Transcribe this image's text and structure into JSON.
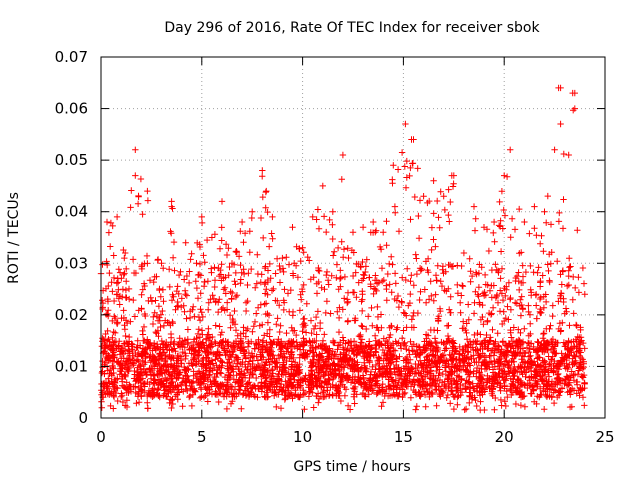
{
  "chart_data": {
    "type": "scatter",
    "title": "Day 296 of 2016, Rate Of TEC Index for receiver sbok",
    "xlabel": "GPS time / hours",
    "ylabel": "ROTI / TECUs",
    "xlim": [
      0,
      25
    ],
    "ylim": [
      0,
      0.07
    ],
    "xticks": [
      0,
      5,
      10,
      15,
      20,
      25
    ],
    "xtick_labels": [
      "0",
      "5",
      "10",
      "15",
      "20",
      "25"
    ],
    "yticks": [
      0,
      0.01,
      0.02,
      0.03,
      0.04,
      0.05,
      0.06,
      0.07
    ],
    "ytick_labels": [
      "0",
      "0.01",
      "0.02",
      "0.03",
      "0.04",
      "0.05",
      "0.06",
      "0.07"
    ],
    "grid": true,
    "marker": "+",
    "color": "#ff0000",
    "x_data_range": [
      0,
      24
    ],
    "y_data_range": [
      0.001,
      0.065
    ],
    "series": [
      {
        "name": "ROTI",
        "notable_points": [
          {
            "x": 1.7,
            "y": 0.052
          },
          {
            "x": 1.7,
            "y": 0.047
          },
          {
            "x": 2.3,
            "y": 0.044
          },
          {
            "x": 3.5,
            "y": 0.041
          },
          {
            "x": 8.0,
            "y": 0.048
          },
          {
            "x": 8.2,
            "y": 0.044
          },
          {
            "x": 12.0,
            "y": 0.051
          },
          {
            "x": 15.1,
            "y": 0.057
          },
          {
            "x": 15.4,
            "y": 0.054
          },
          {
            "x": 17.4,
            "y": 0.047
          },
          {
            "x": 20.3,
            "y": 0.052
          },
          {
            "x": 22.5,
            "y": 0.052
          },
          {
            "x": 22.7,
            "y": 0.064
          },
          {
            "x": 23.4,
            "y": 0.063
          },
          {
            "x": 23.5,
            "y": 0.06
          },
          {
            "x": 22.8,
            "y": 0.057
          },
          {
            "x": 23.2,
            "y": 0.051
          }
        ],
        "envelope": [
          {
            "x": 0.0,
            "y": 0.028
          },
          {
            "x": 0.3,
            "y": 0.038
          },
          {
            "x": 0.8,
            "y": 0.039
          },
          {
            "x": 1.2,
            "y": 0.032
          },
          {
            "x": 1.7,
            "y": 0.052
          },
          {
            "x": 2.3,
            "y": 0.044
          },
          {
            "x": 3.0,
            "y": 0.03
          },
          {
            "x": 3.5,
            "y": 0.042
          },
          {
            "x": 4.2,
            "y": 0.034
          },
          {
            "x": 5.0,
            "y": 0.039
          },
          {
            "x": 5.5,
            "y": 0.035
          },
          {
            "x": 6.0,
            "y": 0.042
          },
          {
            "x": 6.5,
            "y": 0.03
          },
          {
            "x": 7.0,
            "y": 0.038
          },
          {
            "x": 7.5,
            "y": 0.04
          },
          {
            "x": 8.0,
            "y": 0.048
          },
          {
            "x": 8.5,
            "y": 0.039
          },
          {
            "x": 9.0,
            "y": 0.031
          },
          {
            "x": 9.5,
            "y": 0.037
          },
          {
            "x": 10.0,
            "y": 0.033
          },
          {
            "x": 10.5,
            "y": 0.039
          },
          {
            "x": 11.0,
            "y": 0.045
          },
          {
            "x": 11.5,
            "y": 0.04
          },
          {
            "x": 12.0,
            "y": 0.051
          },
          {
            "x": 12.5,
            "y": 0.036
          },
          {
            "x": 13.0,
            "y": 0.037
          },
          {
            "x": 13.5,
            "y": 0.038
          },
          {
            "x": 14.0,
            "y": 0.036
          },
          {
            "x": 14.5,
            "y": 0.049
          },
          {
            "x": 15.1,
            "y": 0.057
          },
          {
            "x": 15.5,
            "y": 0.054
          },
          {
            "x": 16.0,
            "y": 0.043
          },
          {
            "x": 16.5,
            "y": 0.046
          },
          {
            "x": 17.0,
            "y": 0.043
          },
          {
            "x": 17.5,
            "y": 0.047
          },
          {
            "x": 18.0,
            "y": 0.032
          },
          {
            "x": 18.5,
            "y": 0.041
          },
          {
            "x": 19.0,
            "y": 0.037
          },
          {
            "x": 19.5,
            "y": 0.038
          },
          {
            "x": 20.0,
            "y": 0.047
          },
          {
            "x": 20.3,
            "y": 0.052
          },
          {
            "x": 21.0,
            "y": 0.038
          },
          {
            "x": 21.5,
            "y": 0.041
          },
          {
            "x": 22.0,
            "y": 0.04
          },
          {
            "x": 22.5,
            "y": 0.052
          },
          {
            "x": 22.8,
            "y": 0.064
          },
          {
            "x": 23.2,
            "y": 0.051
          },
          {
            "x": 23.5,
            "y": 0.063
          },
          {
            "x": 24.0,
            "y": 0.024
          }
        ]
      }
    ]
  }
}
